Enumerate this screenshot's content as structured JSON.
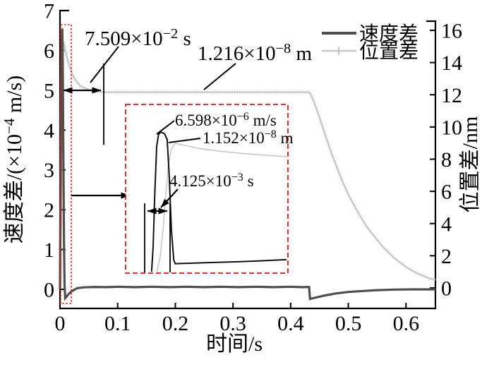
{
  "figure_type": "scientific line chart with inset zoom",
  "colors": {
    "velocity_line": "#4f4f4f",
    "position_line": "#c8c8c8",
    "position_fuzz": "#dcdcdc",
    "highlight_red": "#ee1111",
    "text": "#000000",
    "background": "#ffffff"
  },
  "legend": {
    "items": [
      {
        "label": "速度差"
      },
      {
        "label": "位置差"
      }
    ]
  },
  "annotations": {
    "settling_time": {
      "pre": "7.509×10",
      "exp": "−2",
      "post": " s"
    },
    "position_value": {
      "pre": "1.216×10",
      "exp": "−8",
      "post": " m"
    },
    "inset_velocity_peak": {
      "pre": "6.598×10",
      "exp": "−6",
      "post": " m/s"
    },
    "inset_position_value": {
      "pre": "1.152×10",
      "exp": "−8",
      "post": " m"
    },
    "inset_pulse_width": {
      "pre": "4.125×10",
      "exp": "−3",
      "post": " s"
    }
  },
  "chart_data": {
    "type": "line",
    "title": "",
    "x_axis": {
      "label": "时间/s",
      "tick_values": [
        0,
        0.1,
        0.2,
        0.3,
        0.4,
        0.5,
        0.6
      ],
      "tick_labels": [
        "0",
        "0.1",
        "0.2",
        "0.3",
        "0.4",
        "0.5",
        "0.6"
      ],
      "range": [
        0,
        0.651
      ],
      "grid": false
    },
    "y_left": {
      "label": "速度差/(×10−4 m/s)",
      "label_parts": {
        "pre": "速度差/(×10",
        "exp": "−4",
        "post": " m/s)"
      },
      "tick_values": [
        0,
        1,
        2,
        3,
        4,
        5,
        6,
        7
      ],
      "tick_labels": [
        "0",
        "1",
        "2",
        "3",
        "4",
        "5",
        "6",
        "7"
      ],
      "range": [
        0,
        7
      ]
    },
    "y_right": {
      "label": "位置差/nm",
      "tick_values": [
        0,
        2,
        4,
        6,
        8,
        10,
        12,
        14,
        16
      ],
      "tick_labels": [
        "0",
        "2",
        "4",
        "6",
        "8",
        "10",
        "12",
        "14",
        "16"
      ],
      "range": [
        0,
        16.6
      ]
    },
    "legend_position": "top-right",
    "series": [
      {
        "name": "速度差",
        "axis": "left",
        "units": "×10−4 m/s",
        "points": [
          [
            0,
            0
          ],
          [
            0.001,
            2.2
          ],
          [
            0.002,
            4.8
          ],
          [
            0.003,
            6.2
          ],
          [
            0.004,
            6.55
          ],
          [
            0.005,
            5.2
          ],
          [
            0.006,
            3.1
          ],
          [
            0.007,
            1.2
          ],
          [
            0.008,
            0.1
          ],
          [
            0.009,
            -0.22
          ],
          [
            0.012,
            -0.17
          ],
          [
            0.016,
            -0.1
          ],
          [
            0.022,
            -0.03
          ],
          [
            0.03,
            0.03
          ],
          [
            0.04,
            0.05
          ],
          [
            0.06,
            0.06
          ],
          [
            0.08,
            0.055
          ],
          [
            0.1,
            0.065
          ],
          [
            0.13,
            0.055
          ],
          [
            0.16,
            0.065
          ],
          [
            0.19,
            0.055
          ],
          [
            0.22,
            0.065
          ],
          [
            0.25,
            0.055
          ],
          [
            0.28,
            0.065
          ],
          [
            0.31,
            0.055
          ],
          [
            0.34,
            0.065
          ],
          [
            0.37,
            0.055
          ],
          [
            0.4,
            0.065
          ],
          [
            0.42,
            0.055
          ],
          [
            0.432,
            0.06
          ],
          [
            0.4335,
            -0.24
          ],
          [
            0.445,
            -0.2
          ],
          [
            0.46,
            -0.15
          ],
          [
            0.48,
            -0.1
          ],
          [
            0.5,
            -0.065
          ],
          [
            0.525,
            -0.04
          ],
          [
            0.55,
            -0.02
          ],
          [
            0.58,
            -0.005
          ],
          [
            0.61,
            0
          ],
          [
            0.651,
            0
          ]
        ]
      },
      {
        "name": "位置差",
        "axis": "right",
        "units": "nm",
        "marker": "+",
        "points": [
          [
            0,
            0
          ],
          [
            0.001,
            2.5
          ],
          [
            0.002,
            6
          ],
          [
            0.003,
            10.5
          ],
          [
            0.004,
            13.5
          ],
          [
            0.006,
            15.3
          ],
          [
            0.009,
            14.8
          ],
          [
            0.013,
            14.2
          ],
          [
            0.018,
            13.6
          ],
          [
            0.025,
            13.0
          ],
          [
            0.035,
            12.55
          ],
          [
            0.05,
            12.3
          ],
          [
            0.065,
            12.2
          ],
          [
            0.075,
            12.16
          ],
          [
            0.1,
            12.16
          ],
          [
            0.15,
            12.16
          ],
          [
            0.2,
            12.16
          ],
          [
            0.25,
            12.16
          ],
          [
            0.3,
            12.16
          ],
          [
            0.35,
            12.16
          ],
          [
            0.4,
            12.16
          ],
          [
            0.433,
            12.16
          ],
          [
            0.44,
            11.6
          ],
          [
            0.45,
            10.6
          ],
          [
            0.46,
            9.5
          ],
          [
            0.47,
            8.45
          ],
          [
            0.48,
            7.5
          ],
          [
            0.49,
            6.6
          ],
          [
            0.5,
            5.8
          ],
          [
            0.515,
            4.8
          ],
          [
            0.53,
            3.9
          ],
          [
            0.545,
            3.2
          ],
          [
            0.56,
            2.55
          ],
          [
            0.58,
            1.85
          ],
          [
            0.6,
            1.3
          ],
          [
            0.62,
            0.9
          ],
          [
            0.64,
            0.6
          ],
          [
            0.651,
            0.5
          ]
        ]
      }
    ],
    "inset": {
      "description": "zoom of initial transient inside red dashed box",
      "series": [
        {
          "name": "速度差-inset",
          "points_norm": [
            [
              0.115,
              1.0
            ],
            [
              0.125,
              0.85
            ],
            [
              0.135,
              0.55
            ],
            [
              0.148,
              0.25
            ],
            [
              0.16,
              0.18
            ],
            [
              0.175,
              0.165
            ],
            [
              0.2,
              0.175
            ],
            [
              0.217,
              0.21
            ],
            [
              0.23,
              0.42
            ],
            [
              0.245,
              0.75
            ],
            [
              0.26,
              0.93
            ],
            [
              0.27,
              0.952
            ],
            [
              0.35,
              0.95
            ],
            [
              0.5,
              0.945
            ],
            [
              0.7,
              0.94
            ],
            [
              1.0,
              0.928
            ]
          ]
        },
        {
          "name": "位置差-inset",
          "points_norm": [
            [
              0.15,
              1.0
            ],
            [
              0.17,
              0.92
            ],
            [
              0.19,
              0.75
            ],
            [
              0.21,
              0.52
            ],
            [
              0.225,
              0.36
            ],
            [
              0.245,
              0.265
            ],
            [
              0.27,
              0.232
            ],
            [
              0.32,
              0.242
            ],
            [
              0.42,
              0.262
            ],
            [
              0.55,
              0.278
            ],
            [
              0.7,
              0.292
            ],
            [
              0.85,
              0.303
            ],
            [
              1.0,
              0.312
            ]
          ]
        }
      ]
    }
  }
}
